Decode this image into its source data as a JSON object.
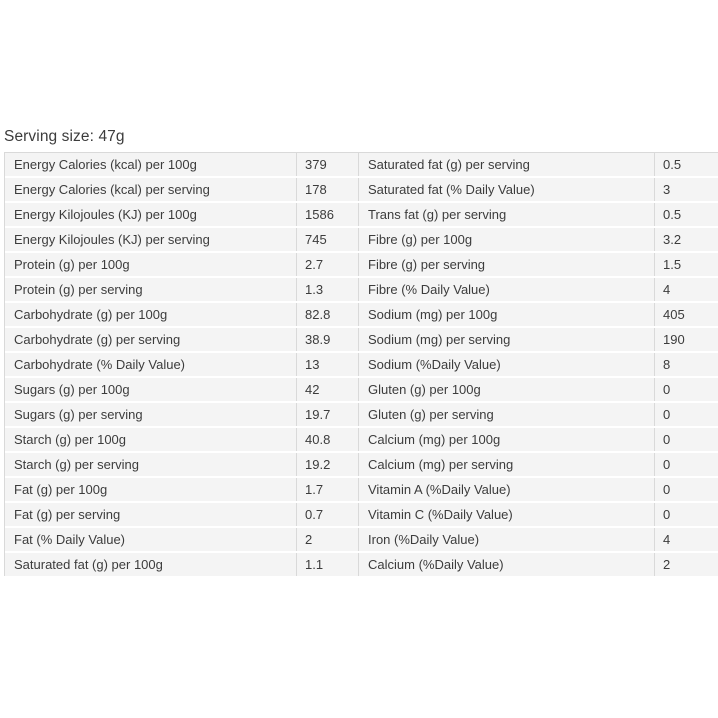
{
  "page": {
    "serving_size_label": "Serving size: 47g"
  },
  "colors": {
    "row_bg": "#f4f4f4",
    "border": "#d9d9d9",
    "text": "#3c3c3c"
  },
  "table": {
    "left_rows": [
      {
        "label": "Energy Calories (kcal) per 100g",
        "value": "379"
      },
      {
        "label": "Energy Calories (kcal) per serving",
        "value": "178"
      },
      {
        "label": "Energy Kilojoules (KJ) per 100g",
        "value": "1586"
      },
      {
        "label": "Energy Kilojoules (KJ) per serving",
        "value": "745"
      },
      {
        "label": "Protein (g) per 100g",
        "value": "2.7"
      },
      {
        "label": "Protein (g) per serving",
        "value": "1.3"
      },
      {
        "label": "Carbohydrate (g) per 100g",
        "value": "82.8"
      },
      {
        "label": "Carbohydrate (g) per serving",
        "value": "38.9"
      },
      {
        "label": "Carbohydrate (% Daily Value)",
        "value": "13"
      },
      {
        "label": "Sugars (g) per 100g",
        "value": "42"
      },
      {
        "label": "Sugars (g) per serving",
        "value": "19.7"
      },
      {
        "label": "Starch (g) per 100g",
        "value": "40.8"
      },
      {
        "label": "Starch (g) per serving",
        "value": "19.2"
      },
      {
        "label": "Fat (g) per 100g",
        "value": "1.7"
      },
      {
        "label": "Fat (g) per serving",
        "value": "0.7"
      },
      {
        "label": "Fat (% Daily Value)",
        "value": "2"
      },
      {
        "label": "Saturated fat (g) per 100g",
        "value": "1.1"
      }
    ],
    "right_rows": [
      {
        "label": "Saturated fat (g) per serving",
        "value": "0.5"
      },
      {
        "label": "Saturated fat (% Daily Value)",
        "value": "3"
      },
      {
        "label": "Trans fat (g) per serving",
        "value": "0.5"
      },
      {
        "label": "Fibre (g) per 100g",
        "value": "3.2"
      },
      {
        "label": "Fibre (g) per serving",
        "value": "1.5"
      },
      {
        "label": "Fibre (% Daily Value)",
        "value": "4"
      },
      {
        "label": "Sodium (mg) per 100g",
        "value": "405"
      },
      {
        "label": "Sodium (mg) per serving",
        "value": "190"
      },
      {
        "label": "Sodium (%Daily Value)",
        "value": "8"
      },
      {
        "label": "Gluten (g) per 100g",
        "value": "0"
      },
      {
        "label": "Gluten (g) per serving",
        "value": "0"
      },
      {
        "label": "Calcium (mg) per 100g",
        "value": "0"
      },
      {
        "label": "Calcium (mg) per serving",
        "value": "0"
      },
      {
        "label": "Vitamin A (%Daily Value)",
        "value": "0"
      },
      {
        "label": "Vitamin C (%Daily Value)",
        "value": "0"
      },
      {
        "label": "Iron (%Daily Value)",
        "value": "4"
      },
      {
        "label": "Calcium (%Daily Value)",
        "value": "2"
      }
    ]
  }
}
